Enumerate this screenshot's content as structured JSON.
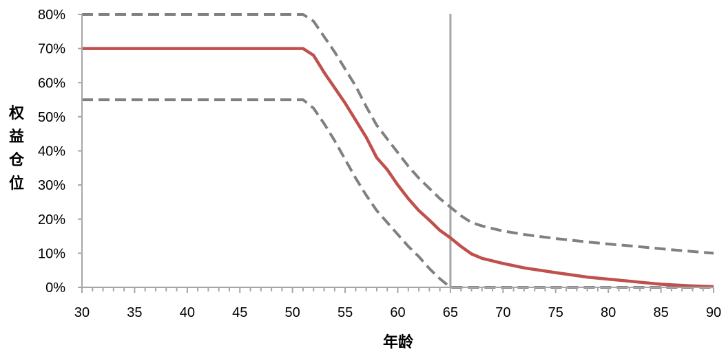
{
  "chart_data": {
    "type": "line",
    "title": "",
    "xlabel": "年龄",
    "ylabel": "权益仓位",
    "xlim": [
      30,
      90
    ],
    "ylim": [
      0,
      0.8
    ],
    "x_ticks": [
      30,
      35,
      40,
      45,
      50,
      55,
      60,
      65,
      70,
      75,
      80,
      85,
      90
    ],
    "x_tick_labels": [
      "30",
      "35",
      "40",
      "45",
      "50",
      "55",
      "60",
      "65",
      "70",
      "75",
      "80",
      "85",
      "90"
    ],
    "y_ticks": [
      0,
      0.1,
      0.2,
      0.3,
      0.4,
      0.5,
      0.6,
      0.7,
      0.8
    ],
    "y_tick_labels": [
      "0%",
      "10%",
      "20%",
      "30%",
      "40%",
      "50%",
      "60%",
      "70%",
      "80%"
    ],
    "grid": false,
    "reference_line": {
      "x": 65,
      "color": "#a6a6a6"
    },
    "series": [
      {
        "style": "solid",
        "color": "#c0504d",
        "x": [
          30,
          51,
          52,
          53,
          54,
          55,
          56,
          57,
          58,
          59,
          60,
          61,
          62,
          63,
          64,
          65,
          66,
          67,
          68,
          70,
          72,
          75,
          78,
          80,
          83,
          85,
          88,
          90
        ],
        "y": [
          0.7,
          0.7,
          0.68,
          0.63,
          0.585,
          0.54,
          0.49,
          0.44,
          0.38,
          0.345,
          0.3,
          0.26,
          0.225,
          0.197,
          0.167,
          0.145,
          0.12,
          0.098,
          0.085,
          0.07,
          0.057,
          0.043,
          0.03,
          0.024,
          0.015,
          0.009,
          0.004,
          0.002
        ]
      },
      {
        "style": "dashed",
        "color": "#808080",
        "x": [
          30,
          51,
          52,
          53,
          54,
          55,
          56,
          57,
          58,
          59,
          60,
          61,
          62,
          63,
          64,
          65,
          66,
          67,
          68,
          70,
          72,
          75,
          78,
          80,
          83,
          85,
          88,
          90
        ],
        "y": [
          0.8,
          0.8,
          0.78,
          0.735,
          0.69,
          0.64,
          0.59,
          0.53,
          0.475,
          0.435,
          0.395,
          0.355,
          0.32,
          0.29,
          0.26,
          0.235,
          0.21,
          0.19,
          0.18,
          0.165,
          0.155,
          0.143,
          0.133,
          0.127,
          0.119,
          0.113,
          0.105,
          0.1
        ]
      },
      {
        "style": "dashed",
        "color": "#808080",
        "x": [
          30,
          51,
          52,
          53,
          54,
          55,
          56,
          57,
          58,
          59,
          60,
          61,
          62,
          63,
          64,
          65,
          90
        ],
        "y": [
          0.55,
          0.55,
          0.525,
          0.48,
          0.43,
          0.375,
          0.32,
          0.27,
          0.225,
          0.19,
          0.155,
          0.12,
          0.09,
          0.055,
          0.025,
          0.0,
          0.0
        ]
      }
    ]
  }
}
